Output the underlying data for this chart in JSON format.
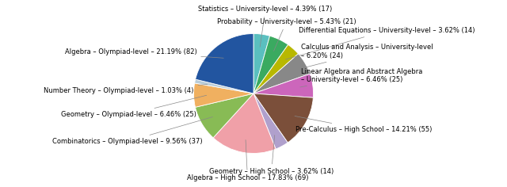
{
  "slices": [
    {
      "label": "Statistics – University-level – 4.39% (17)",
      "value": 17,
      "color": "#5abfbf"
    },
    {
      "label": "Probability – University-level – 5.43% (21)",
      "value": 21,
      "color": "#3aaa60"
    },
    {
      "label": "Differential Equations – University-level – 3.62% (14)",
      "value": 14,
      "color": "#b8b800"
    },
    {
      "label": "Calculus and Analysis – University-level\n– 6.20% (24)",
      "value": 24,
      "color": "#888888"
    },
    {
      "label": "Linear Algebra and Abstract Algebra\n– University-level – 6.46% (25)",
      "value": 25,
      "color": "#cc66bb"
    },
    {
      "label": "Pre-Calculus – High School – 14.21% (55)",
      "value": 55,
      "color": "#7b4f3a"
    },
    {
      "label": "Geometry – High School – 3.62% (14)",
      "value": 14,
      "color": "#b0a0cc"
    },
    {
      "label": "Algebra – High School – 17.83% (69)",
      "value": 69,
      "color": "#f0a0a8"
    },
    {
      "label": "Combinatorics – Olympiad-level – 9.56% (37)",
      "value": 37,
      "color": "#88bb55"
    },
    {
      "label": "Geometry – Olympiad-level – 6.46% (25)",
      "value": 25,
      "color": "#f0b060"
    },
    {
      "label": "Number Theory – Olympiad-level – 1.03% (4)",
      "value": 4,
      "color": "#b8ccd8"
    },
    {
      "label": "Algebra – Olympiad-level – 21.19% (82)",
      "value": 82,
      "color": "#2255a0"
    }
  ],
  "figsize": [
    6.4,
    2.36
  ],
  "dpi": 100,
  "fontsize": 6.0
}
